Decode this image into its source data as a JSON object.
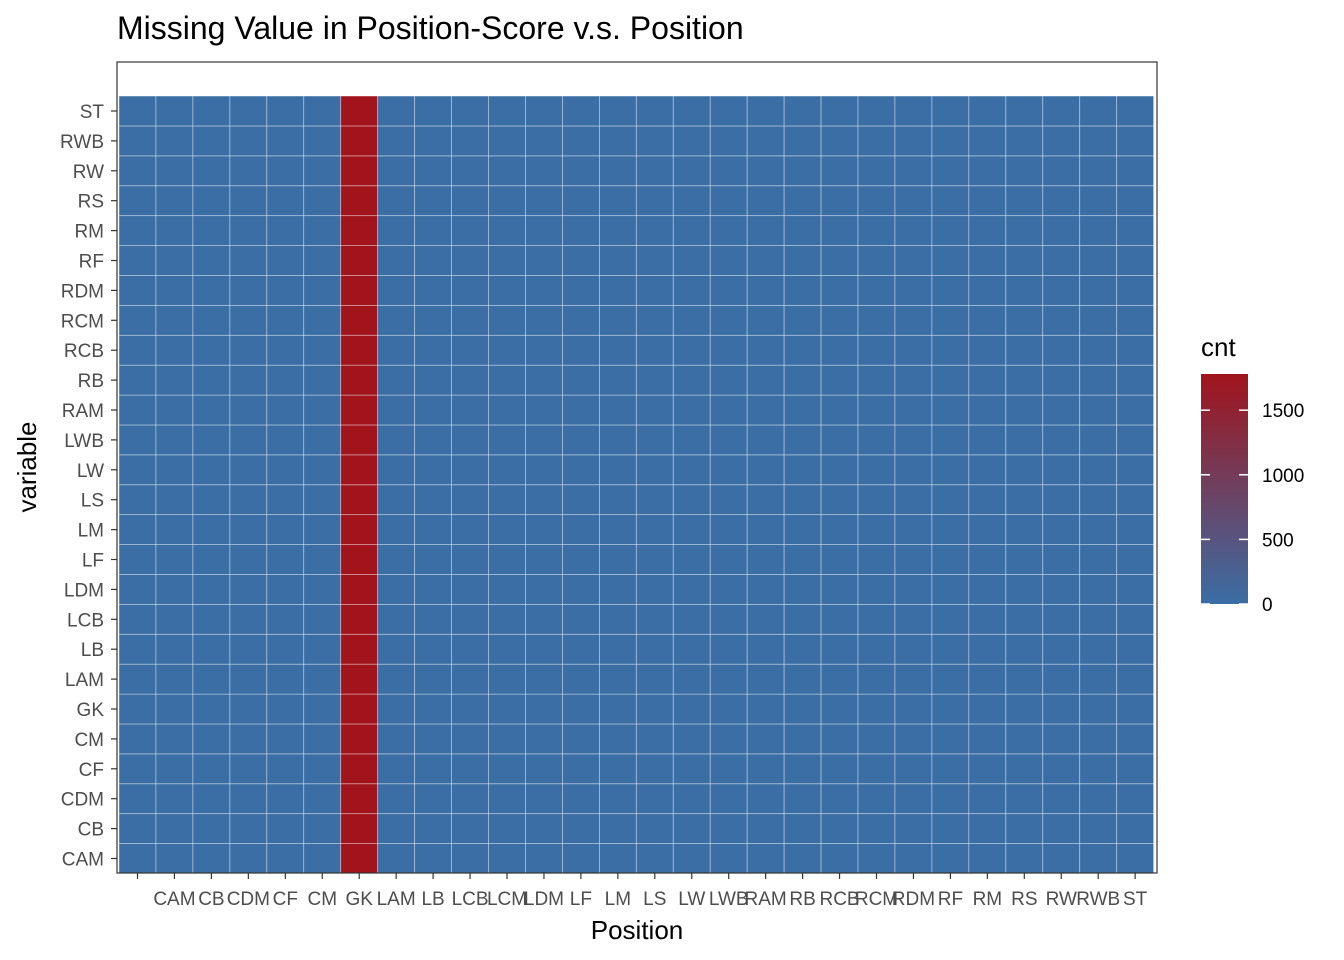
{
  "chart_data": {
    "type": "heatmap",
    "title": "Missing Value in Position-Score v.s. Position",
    "xlabel": "Position",
    "ylabel": "variable",
    "x_categories": [
      "",
      "CAM",
      "CB",
      "CDM",
      "CF",
      "CM",
      "GK",
      "LAM",
      "LB",
      "LCB",
      "LCM",
      "LDM",
      "LF",
      "LM",
      "LS",
      "LW",
      "LWB",
      "RAM",
      "RB",
      "RCB",
      "RCM",
      "RDM",
      "RF",
      "RM",
      "RS",
      "RW",
      "RWB",
      "ST"
    ],
    "y_categories": [
      "CAM",
      "CB",
      "CDM",
      "CF",
      "CM",
      "GK",
      "LAM",
      "LB",
      "LCB",
      "LDM",
      "LF",
      "LM",
      "LS",
      "LW",
      "LWB",
      "RAM",
      "RB",
      "RCB",
      "RCM",
      "RDM",
      "RF",
      "RM",
      "RS",
      "RW",
      "RWB",
      "ST"
    ],
    "default_value": 0,
    "highlight": {
      "x": "GK",
      "value": 1780
    },
    "color_scale": {
      "low": "#3a6ea5",
      "high": "#a1141c",
      "range": [
        0,
        1780
      ]
    },
    "legend": {
      "title": "cnt",
      "position": "right",
      "ticks": [
        0,
        500,
        1000,
        1500
      ]
    },
    "grid": true
  }
}
